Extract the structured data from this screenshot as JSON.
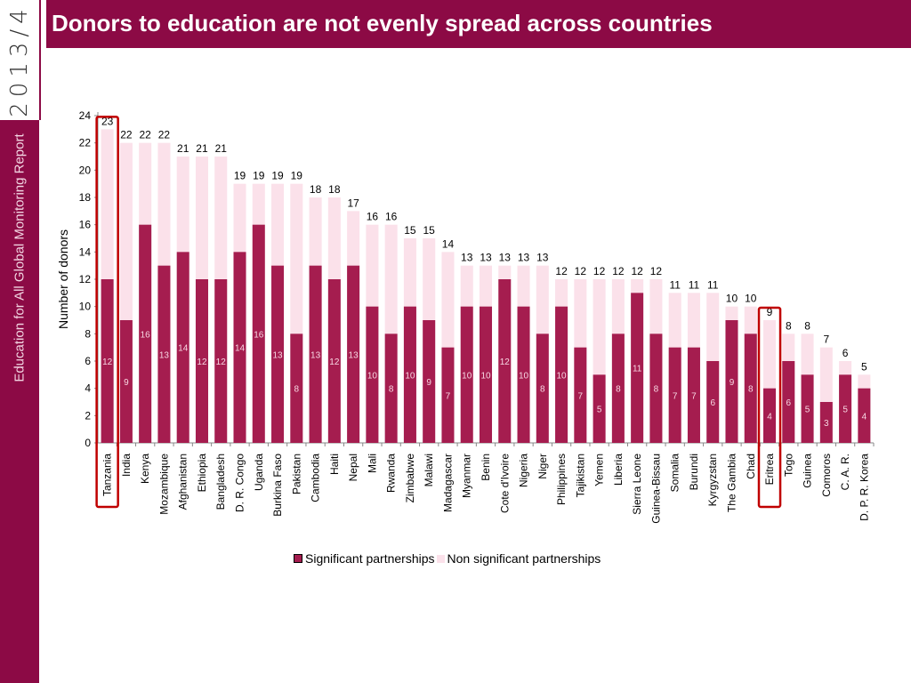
{
  "header": {
    "title": "Donors to education are not evenly spread across countries"
  },
  "sidebar": {
    "year": "2013/4",
    "report_name": "Education for All Global Monitoring Report"
  },
  "colors": {
    "brand": "#8c0a45",
    "significant": "#a51d4f",
    "non_significant": "#fbe1ea",
    "highlight": "#c00000"
  },
  "chart_data": {
    "type": "bar",
    "stacked": true,
    "title": "Donors to education are not evenly spread across countries",
    "xlabel": "",
    "ylabel": "Number of donors",
    "ylim": [
      0,
      24
    ],
    "yticks": [
      0,
      2,
      4,
      6,
      8,
      10,
      12,
      14,
      16,
      18,
      20,
      22,
      24
    ],
    "legend_position": "bottom",
    "highlighted": [
      "Tanzania",
      "Eritrea"
    ],
    "categories": [
      "Tanzania",
      "India",
      "Kenya",
      "Mozambique",
      "Afghanistan",
      "Ethiopia",
      "Bangladesh",
      "D. R. Congo",
      "Uganda",
      "Burkina Faso",
      "Pakistan",
      "Cambodia",
      "Haiti",
      "Nepal",
      "Mali",
      "Rwanda",
      "Zimbabwe",
      "Malawi",
      "Madagascar",
      "Myanmar",
      "Benin",
      "Cote d'Ivoire",
      "Nigeria",
      "Niger",
      "Philippines",
      "Tajikistan",
      "Yemen",
      "Liberia",
      "Sierra Leone",
      "Guinea-Bissau",
      "Somalia",
      "Burundi",
      "Kyrgyzstan",
      "The Gambia",
      "Chad",
      "Eritrea",
      "Togo",
      "Guinea",
      "Comoros",
      "C. A. R.",
      "D. P. R. Korea"
    ],
    "series": [
      {
        "name": "Significant partnerships",
        "values": [
          12,
          9,
          16,
          13,
          14,
          12,
          12,
          14,
          16,
          13,
          8,
          13,
          12,
          13,
          10,
          8,
          10,
          9,
          7,
          10,
          10,
          12,
          10,
          8,
          10,
          7,
          5,
          8,
          11,
          8,
          7,
          7,
          6,
          9,
          8,
          4,
          6,
          5,
          3,
          5,
          4
        ]
      },
      {
        "name": "Non significant partnerships",
        "values": [
          11,
          13,
          6,
          9,
          7,
          9,
          9,
          5,
          3,
          6,
          11,
          5,
          6,
          4,
          6,
          8,
          5,
          6,
          7,
          3,
          3,
          1,
          3,
          5,
          2,
          5,
          7,
          4,
          1,
          4,
          4,
          4,
          5,
          1,
          2,
          5,
          2,
          3,
          4,
          1,
          1
        ]
      }
    ],
    "totals": [
      23,
      22,
      22,
      22,
      21,
      21,
      21,
      19,
      19,
      19,
      19,
      18,
      18,
      17,
      16,
      16,
      15,
      15,
      14,
      13,
      13,
      13,
      13,
      13,
      12,
      12,
      12,
      12,
      12,
      12,
      11,
      11,
      11,
      10,
      10,
      9,
      8,
      8,
      7,
      6,
      5
    ]
  }
}
